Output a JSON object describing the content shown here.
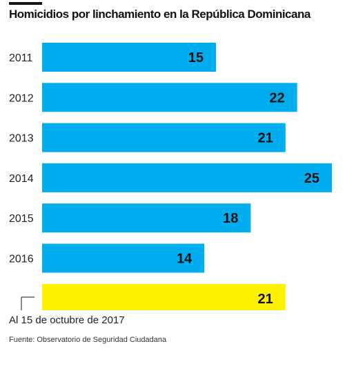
{
  "title": "Homicidios por linchamiento en la República Dominicana",
  "note": "Al 15 de octubre de 2017",
  "source": "Fuente: Observatorio de Seguridad Ciudadana",
  "colors": {
    "bar": "#00AEEF",
    "highlight": "#FFF200",
    "text": "#111111"
  },
  "chart_data": {
    "type": "bar",
    "orientation": "horizontal",
    "categories": [
      "2011",
      "2012",
      "2013",
      "2014",
      "2015",
      "2016",
      ""
    ],
    "values": [
      15,
      22,
      21,
      25,
      18,
      14,
      21
    ],
    "highlight_index": 6,
    "xlim": [
      0,
      25
    ],
    "grid": false,
    "legend": "none"
  }
}
